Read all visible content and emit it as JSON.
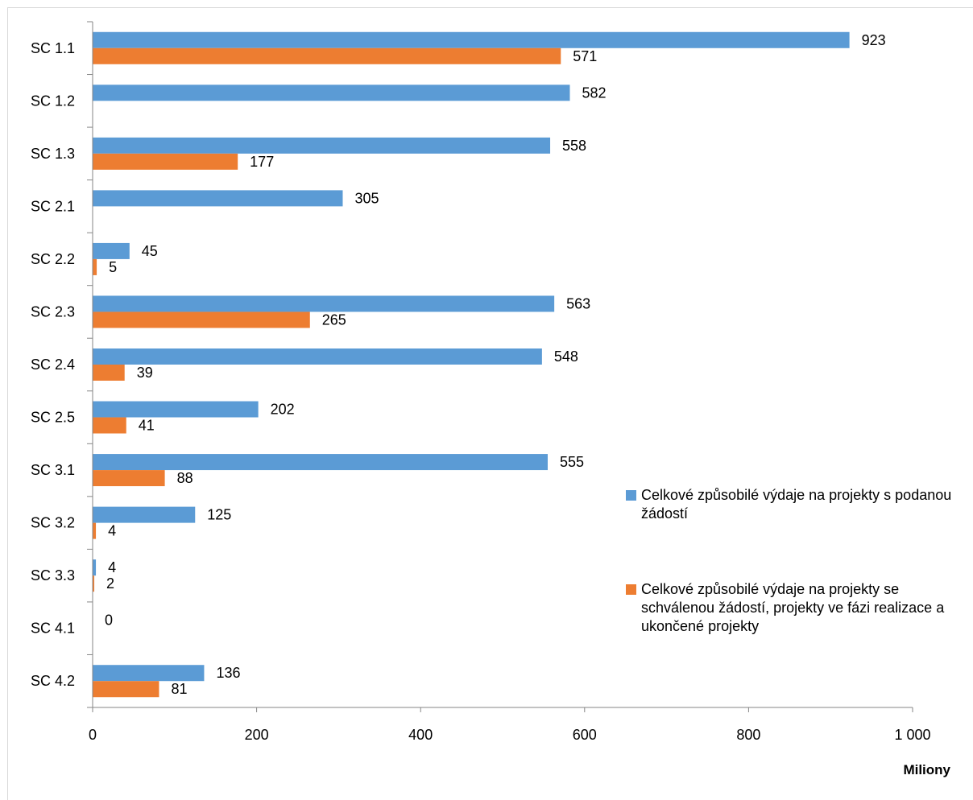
{
  "chart_data": {
    "type": "bar",
    "orientation": "horizontal",
    "categories": [
      "SC 1.1",
      "SC 1.2",
      "SC 1.3",
      "SC 2.1",
      "SC 2.2",
      "SC 2.3",
      "SC 2.4",
      "SC 2.5",
      "SC 3.1",
      "SC 3.2",
      "SC 3.3",
      "SC 4.1",
      "SC 4.2"
    ],
    "series": [
      {
        "name": "Celkové způsobilé výdaje na projekty s podanou žádostí",
        "color": "#5b9bd5",
        "values": [
          923,
          582,
          558,
          305,
          45,
          563,
          548,
          202,
          555,
          125,
          4,
          0,
          136
        ],
        "labels": [
          "923",
          "582",
          "558",
          "305",
          "45",
          "563",
          "548",
          "202",
          "555",
          "125",
          "4",
          "0",
          "136"
        ]
      },
      {
        "name": "Celkové způsobilé výdaje na projekty se schválenou žádostí, projekty ve fázi realizace a ukončené projekty",
        "color": "#ed7d31",
        "values": [
          571,
          null,
          177,
          null,
          5,
          265,
          39,
          41,
          88,
          4,
          2,
          null,
          81
        ],
        "labels": [
          "571",
          "",
          "177",
          "",
          "5",
          "265",
          "39",
          "41",
          "88",
          "4",
          "2",
          "",
          "81"
        ]
      }
    ],
    "xlim": [
      0,
      1000
    ],
    "xticks": [
      0,
      200,
      400,
      600,
      800,
      1000
    ],
    "xtick_labels": [
      "0",
      "200",
      "400",
      "600",
      "800",
      "1 000"
    ],
    "xlabel": "Miliony",
    "ylabel": "",
    "title": "",
    "grid": false,
    "legend_position": "right"
  }
}
